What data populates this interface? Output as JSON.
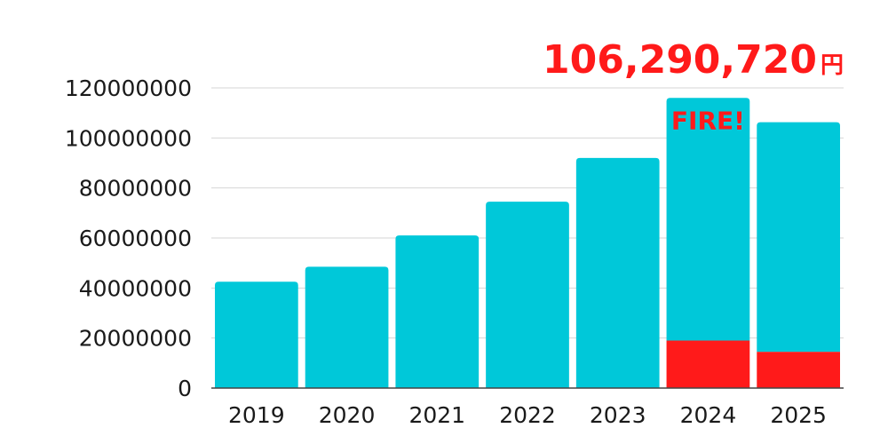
{
  "total": {
    "value": "106,290,720",
    "unit": "円"
  },
  "colors": {
    "bar": "#00c8d9",
    "highlight": "#ff1a1a",
    "grid": "#d6d6d6",
    "axis": "#444444"
  },
  "chart_data": {
    "type": "bar",
    "stacked": true,
    "categories": [
      "2019",
      "2020",
      "2021",
      "2022",
      "2023",
      "2024",
      "2025"
    ],
    "series": [
      {
        "values": [
          0,
          0,
          0,
          0,
          0,
          19000000,
          14500000
        ]
      },
      {
        "values": [
          42500000,
          48500000,
          61000000,
          74500000,
          92000000,
          97000000,
          91790720
        ]
      }
    ],
    "yticks": [
      "0",
      "20000000",
      "40000000",
      "60000000",
      "80000000",
      "100000000",
      "120000000"
    ],
    "ylim": [
      0,
      120000000
    ],
    "grid": true,
    "annotation": {
      "text": "FIRE!",
      "category": "2024"
    }
  }
}
